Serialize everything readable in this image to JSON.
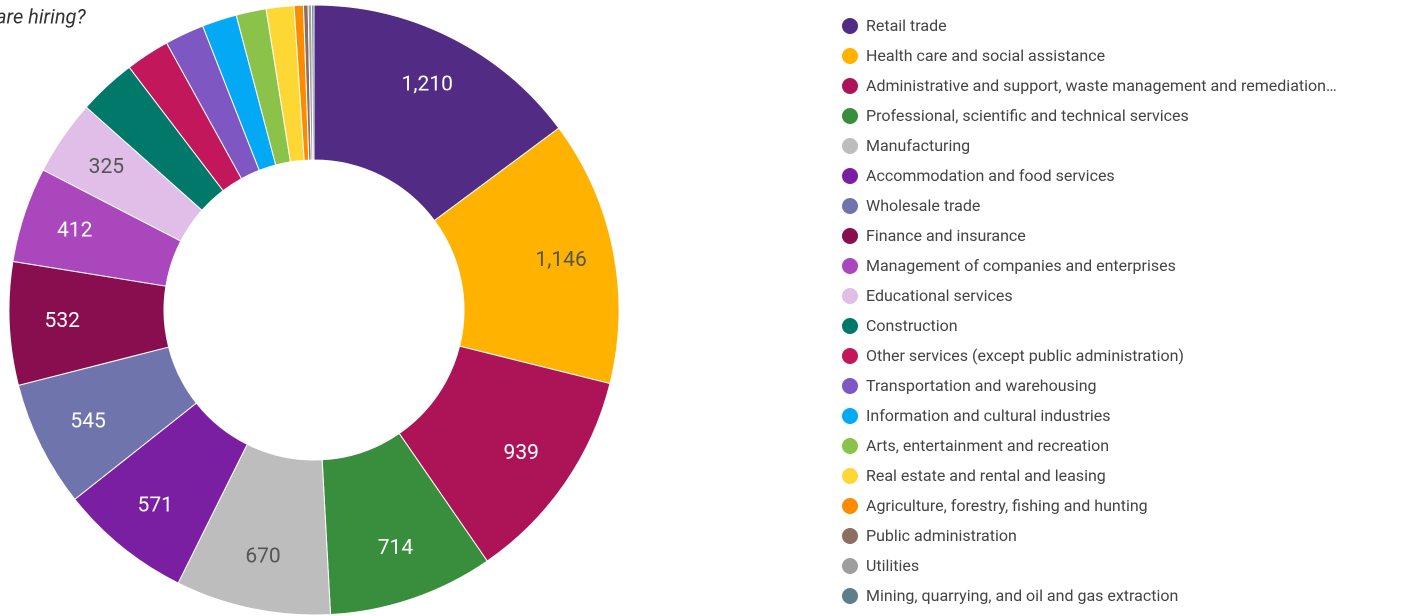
{
  "chart_data": {
    "type": "donut",
    "title": "are hiring?",
    "categories": [
      "Retail trade",
      "Health care and social assistance",
      "Administrative and support, waste management and remediation…",
      "Professional, scientific and technical services",
      "Manufacturing",
      "Accommodation and food services",
      "Wholesale trade",
      "Finance and insurance",
      "Management of companies and enterprises",
      "Educational services",
      "Construction",
      "Other services (except public administration)",
      "Transportation and warehousing",
      "Information and cultural industries",
      "Arts, entertainment and recreation",
      "Real estate and rental and leasing",
      "Agriculture, forestry, fishing and hunting",
      "Public administration",
      "Utilities",
      "Mining, quarrying, and oil and gas extraction"
    ],
    "values": [
      1210,
      1146,
      939,
      714,
      670,
      571,
      545,
      532,
      412,
      325,
      250,
      190,
      170,
      150,
      130,
      120,
      40,
      20,
      15,
      10
    ],
    "value_labels": [
      "1,210",
      "1,146",
      "939",
      "714",
      "670",
      "571",
      "545",
      "532",
      "412",
      "325",
      null,
      null,
      null,
      null,
      null,
      null,
      null,
      null,
      null,
      null
    ],
    "colors": [
      "#512b84",
      "#ffb300",
      "#ad1457",
      "#388e3c",
      "#bdbdbd",
      "#7b1fa2",
      "#6f74ad",
      "#880e4f",
      "#ab47bc",
      "#e1bee7",
      "#00796b",
      "#c2185b",
      "#7e57c2",
      "#03a9f4",
      "#8bc34a",
      "#fdd835",
      "#fb8c00",
      "#8d6e63",
      "#9e9e9e",
      "#607d8b"
    ],
    "legend": "right"
  }
}
